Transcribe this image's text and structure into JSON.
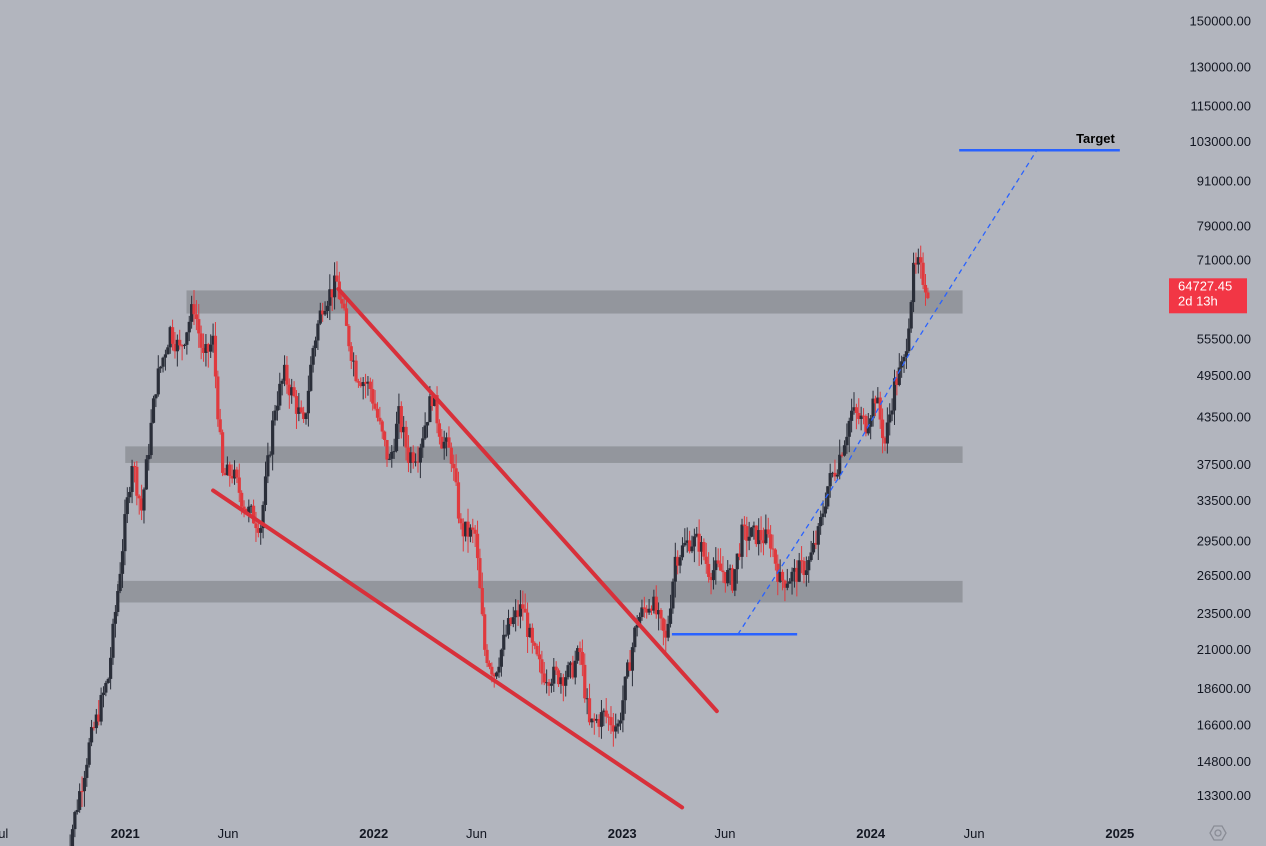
{
  "colors": {
    "background": "#b2b5be",
    "up_candle": "#2a2e39",
    "down_candle": "#e03a3e",
    "zone": "#8f9299",
    "wedge": "#d8303a",
    "level": "#2962ff",
    "price_tag": "#f23645"
  },
  "chart_data": {
    "type": "candlestick",
    "scale": "log",
    "ylim": [
      12500,
      160000
    ],
    "xlim": [
      "2020-07-01",
      "2025-03-01"
    ],
    "y_ticks": [
      "150000.00",
      "130000.00",
      "115000.00",
      "103000.00",
      "91000.00",
      "79000.00",
      "71000.00",
      "55500.00",
      "49500.00",
      "43500.00",
      "37500.00",
      "33500.00",
      "29500.00",
      "26500.00",
      "23500.00",
      "21000.00",
      "18600.00",
      "16600.00",
      "14800.00",
      "13300.00"
    ],
    "x_ticks": [
      {
        "label": "Jul",
        "date": "2020-07-01",
        "major": false
      },
      {
        "label": "2021",
        "date": "2021-01-01",
        "major": true
      },
      {
        "label": "Jun",
        "date": "2021-06-01",
        "major": false
      },
      {
        "label": "2022",
        "date": "2022-01-01",
        "major": true
      },
      {
        "label": "Jun",
        "date": "2022-06-01",
        "major": false
      },
      {
        "label": "2023",
        "date": "2023-01-01",
        "major": true
      },
      {
        "label": "Jun",
        "date": "2023-06-01",
        "major": false
      },
      {
        "label": "2024",
        "date": "2024-01-01",
        "major": true
      },
      {
        "label": "Jun",
        "date": "2024-06-01",
        "major": false
      },
      {
        "label": "2025",
        "date": "2025-01-01",
        "major": true
      }
    ],
    "current_price": {
      "value": "64727.45",
      "value_num": 64727.45,
      "countdown": "2d 13h"
    },
    "price_path": [
      [
        "2020-10-05",
        10800
      ],
      [
        "2020-11-09",
        15500
      ],
      [
        "2020-12-07",
        19200
      ],
      [
        "2020-12-28",
        29000
      ],
      [
        "2021-01-11",
        38000
      ],
      [
        "2021-01-25",
        32500
      ],
      [
        "2021-02-15",
        48000
      ],
      [
        "2021-03-08",
        57000
      ],
      [
        "2021-03-22",
        53500
      ],
      [
        "2021-04-12",
        61500
      ],
      [
        "2021-04-26",
        52000
      ],
      [
        "2021-05-10",
        55000
      ],
      [
        "2021-05-24",
        36000
      ],
      [
        "2021-06-07",
        36500
      ],
      [
        "2021-06-28",
        32500
      ],
      [
        "2021-07-19",
        31000
      ],
      [
        "2021-08-09",
        45000
      ],
      [
        "2021-08-23",
        49500
      ],
      [
        "2021-09-06",
        46000
      ],
      [
        "2021-09-20",
        42000
      ],
      [
        "2021-10-04",
        54000
      ],
      [
        "2021-10-18",
        62000
      ],
      [
        "2021-11-08",
        66000
      ],
      [
        "2021-11-22",
        57000
      ],
      [
        "2021-12-06",
        50000
      ],
      [
        "2021-12-27",
        47500
      ],
      [
        "2022-01-10",
        42000
      ],
      [
        "2022-01-24",
        37500
      ],
      [
        "2022-02-07",
        43500
      ],
      [
        "2022-02-21",
        38500
      ],
      [
        "2022-03-07",
        39000
      ],
      [
        "2022-03-28",
        46500
      ],
      [
        "2022-04-11",
        40500
      ],
      [
        "2022-04-25",
        38500
      ],
      [
        "2022-05-09",
        30500
      ],
      [
        "2022-05-30",
        30000
      ],
      [
        "2022-06-13",
        21000
      ],
      [
        "2022-06-27",
        19500
      ],
      [
        "2022-07-18",
        22500
      ],
      [
        "2022-08-08",
        24000
      ],
      [
        "2022-08-22",
        21000
      ],
      [
        "2022-09-05",
        19500
      ],
      [
        "2022-09-26",
        19300
      ],
      [
        "2022-10-17",
        19500
      ],
      [
        "2022-10-31",
        20800
      ],
      [
        "2022-11-14",
        16500
      ],
      [
        "2022-12-05",
        17100
      ],
      [
        "2022-12-26",
        16500
      ],
      [
        "2023-01-09",
        19500
      ],
      [
        "2023-01-23",
        23000
      ],
      [
        "2023-02-13",
        24500
      ],
      [
        "2023-03-06",
        21500
      ],
      [
        "2023-03-20",
        28000
      ],
      [
        "2023-04-10",
        29500
      ],
      [
        "2023-04-24",
        29300
      ],
      [
        "2023-05-08",
        27000
      ],
      [
        "2023-05-29",
        26800
      ],
      [
        "2023-06-12",
        26000
      ],
      [
        "2023-06-26",
        30000
      ],
      [
        "2023-07-17",
        30000
      ],
      [
        "2023-08-07",
        29500
      ],
      [
        "2023-08-21",
        26000
      ],
      [
        "2023-09-11",
        26500
      ],
      [
        "2023-10-02",
        27500
      ],
      [
        "2023-10-16",
        30000
      ],
      [
        "2023-10-30",
        35000
      ],
      [
        "2023-11-13",
        37500
      ],
      [
        "2023-12-04",
        44000
      ],
      [
        "2023-12-25",
        42500
      ],
      [
        "2024-01-08",
        46500
      ],
      [
        "2024-01-22",
        40000
      ],
      [
        "2024-02-05",
        48000
      ],
      [
        "2024-02-19",
        51500
      ],
      [
        "2024-03-04",
        68000
      ],
      [
        "2024-03-11",
        69500
      ],
      [
        "2024-03-25",
        64727.45
      ]
    ],
    "zones": [
      {
        "x0": "2021-04-01",
        "x1": "2024-05-15",
        "y0": 60000,
        "y1": 64500
      },
      {
        "x0": "2021-01-01",
        "x1": "2024-05-15",
        "y0": 37600,
        "y1": 39600
      },
      {
        "x0": "2020-12-20",
        "x1": "2024-05-15",
        "y0": 24300,
        "y1": 26000
      }
    ],
    "trendlines": [
      {
        "style": "wedge-upper",
        "x0": "2021-11-10",
        "y0": 64800,
        "x1": "2023-05-20",
        "y1": 17300
      },
      {
        "style": "wedge-lower",
        "x0": "2021-05-10",
        "y0": 34500,
        "x1": "2023-03-30",
        "y1": 12800
      }
    ],
    "levels": [
      {
        "x0": "2023-03-15",
        "x1": "2023-09-15",
        "y": 22000
      },
      {
        "x0": "2024-05-10",
        "x1": "2025-01-01",
        "y": 100000,
        "label": "Target"
      }
    ],
    "projection": [
      [
        "2023-06-20",
        22000
      ],
      [
        "2023-11-20",
        36500
      ],
      [
        "2024-03-08",
        55000
      ],
      [
        "2024-09-01",
        100000
      ]
    ]
  }
}
